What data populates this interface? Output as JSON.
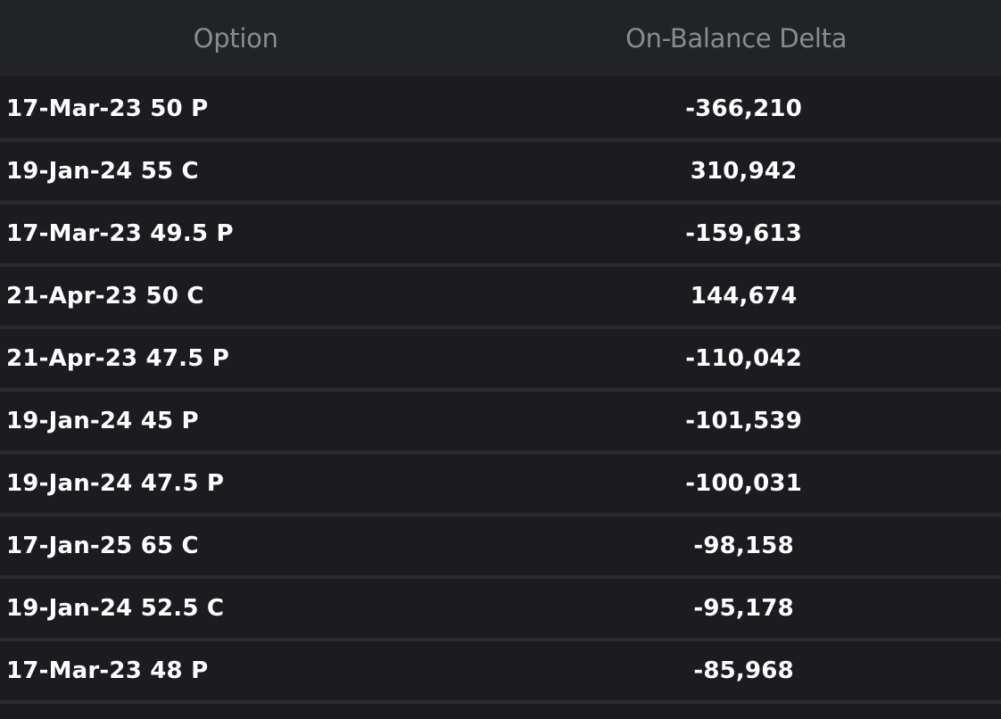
{
  "table": {
    "headers": {
      "option": "Option",
      "delta": "On-Balance Delta"
    },
    "rows": [
      {
        "option": "17-Mar-23 50 P",
        "delta": "-366,210"
      },
      {
        "option": "19-Jan-24 55 C",
        "delta": "310,942"
      },
      {
        "option": "17-Mar-23 49.5 P",
        "delta": "-159,613"
      },
      {
        "option": "21-Apr-23 50 C",
        "delta": "144,674"
      },
      {
        "option": "21-Apr-23 47.5 P",
        "delta": "-110,042"
      },
      {
        "option": "19-Jan-24 45 P",
        "delta": "-101,539"
      },
      {
        "option": "19-Jan-24 47.5 P",
        "delta": "-100,031"
      },
      {
        "option": "17-Jan-25 65 C",
        "delta": "-98,158"
      },
      {
        "option": "19-Jan-24 52.5 C",
        "delta": "-95,178"
      },
      {
        "option": "17-Mar-23 48 P",
        "delta": "-85,968"
      }
    ]
  },
  "colors": {
    "background": "#1c1c20",
    "header_background": "#222326",
    "header_text": "#8a8b8f",
    "row_text": "#ffffff",
    "row_divider": "#2a2b2f"
  }
}
